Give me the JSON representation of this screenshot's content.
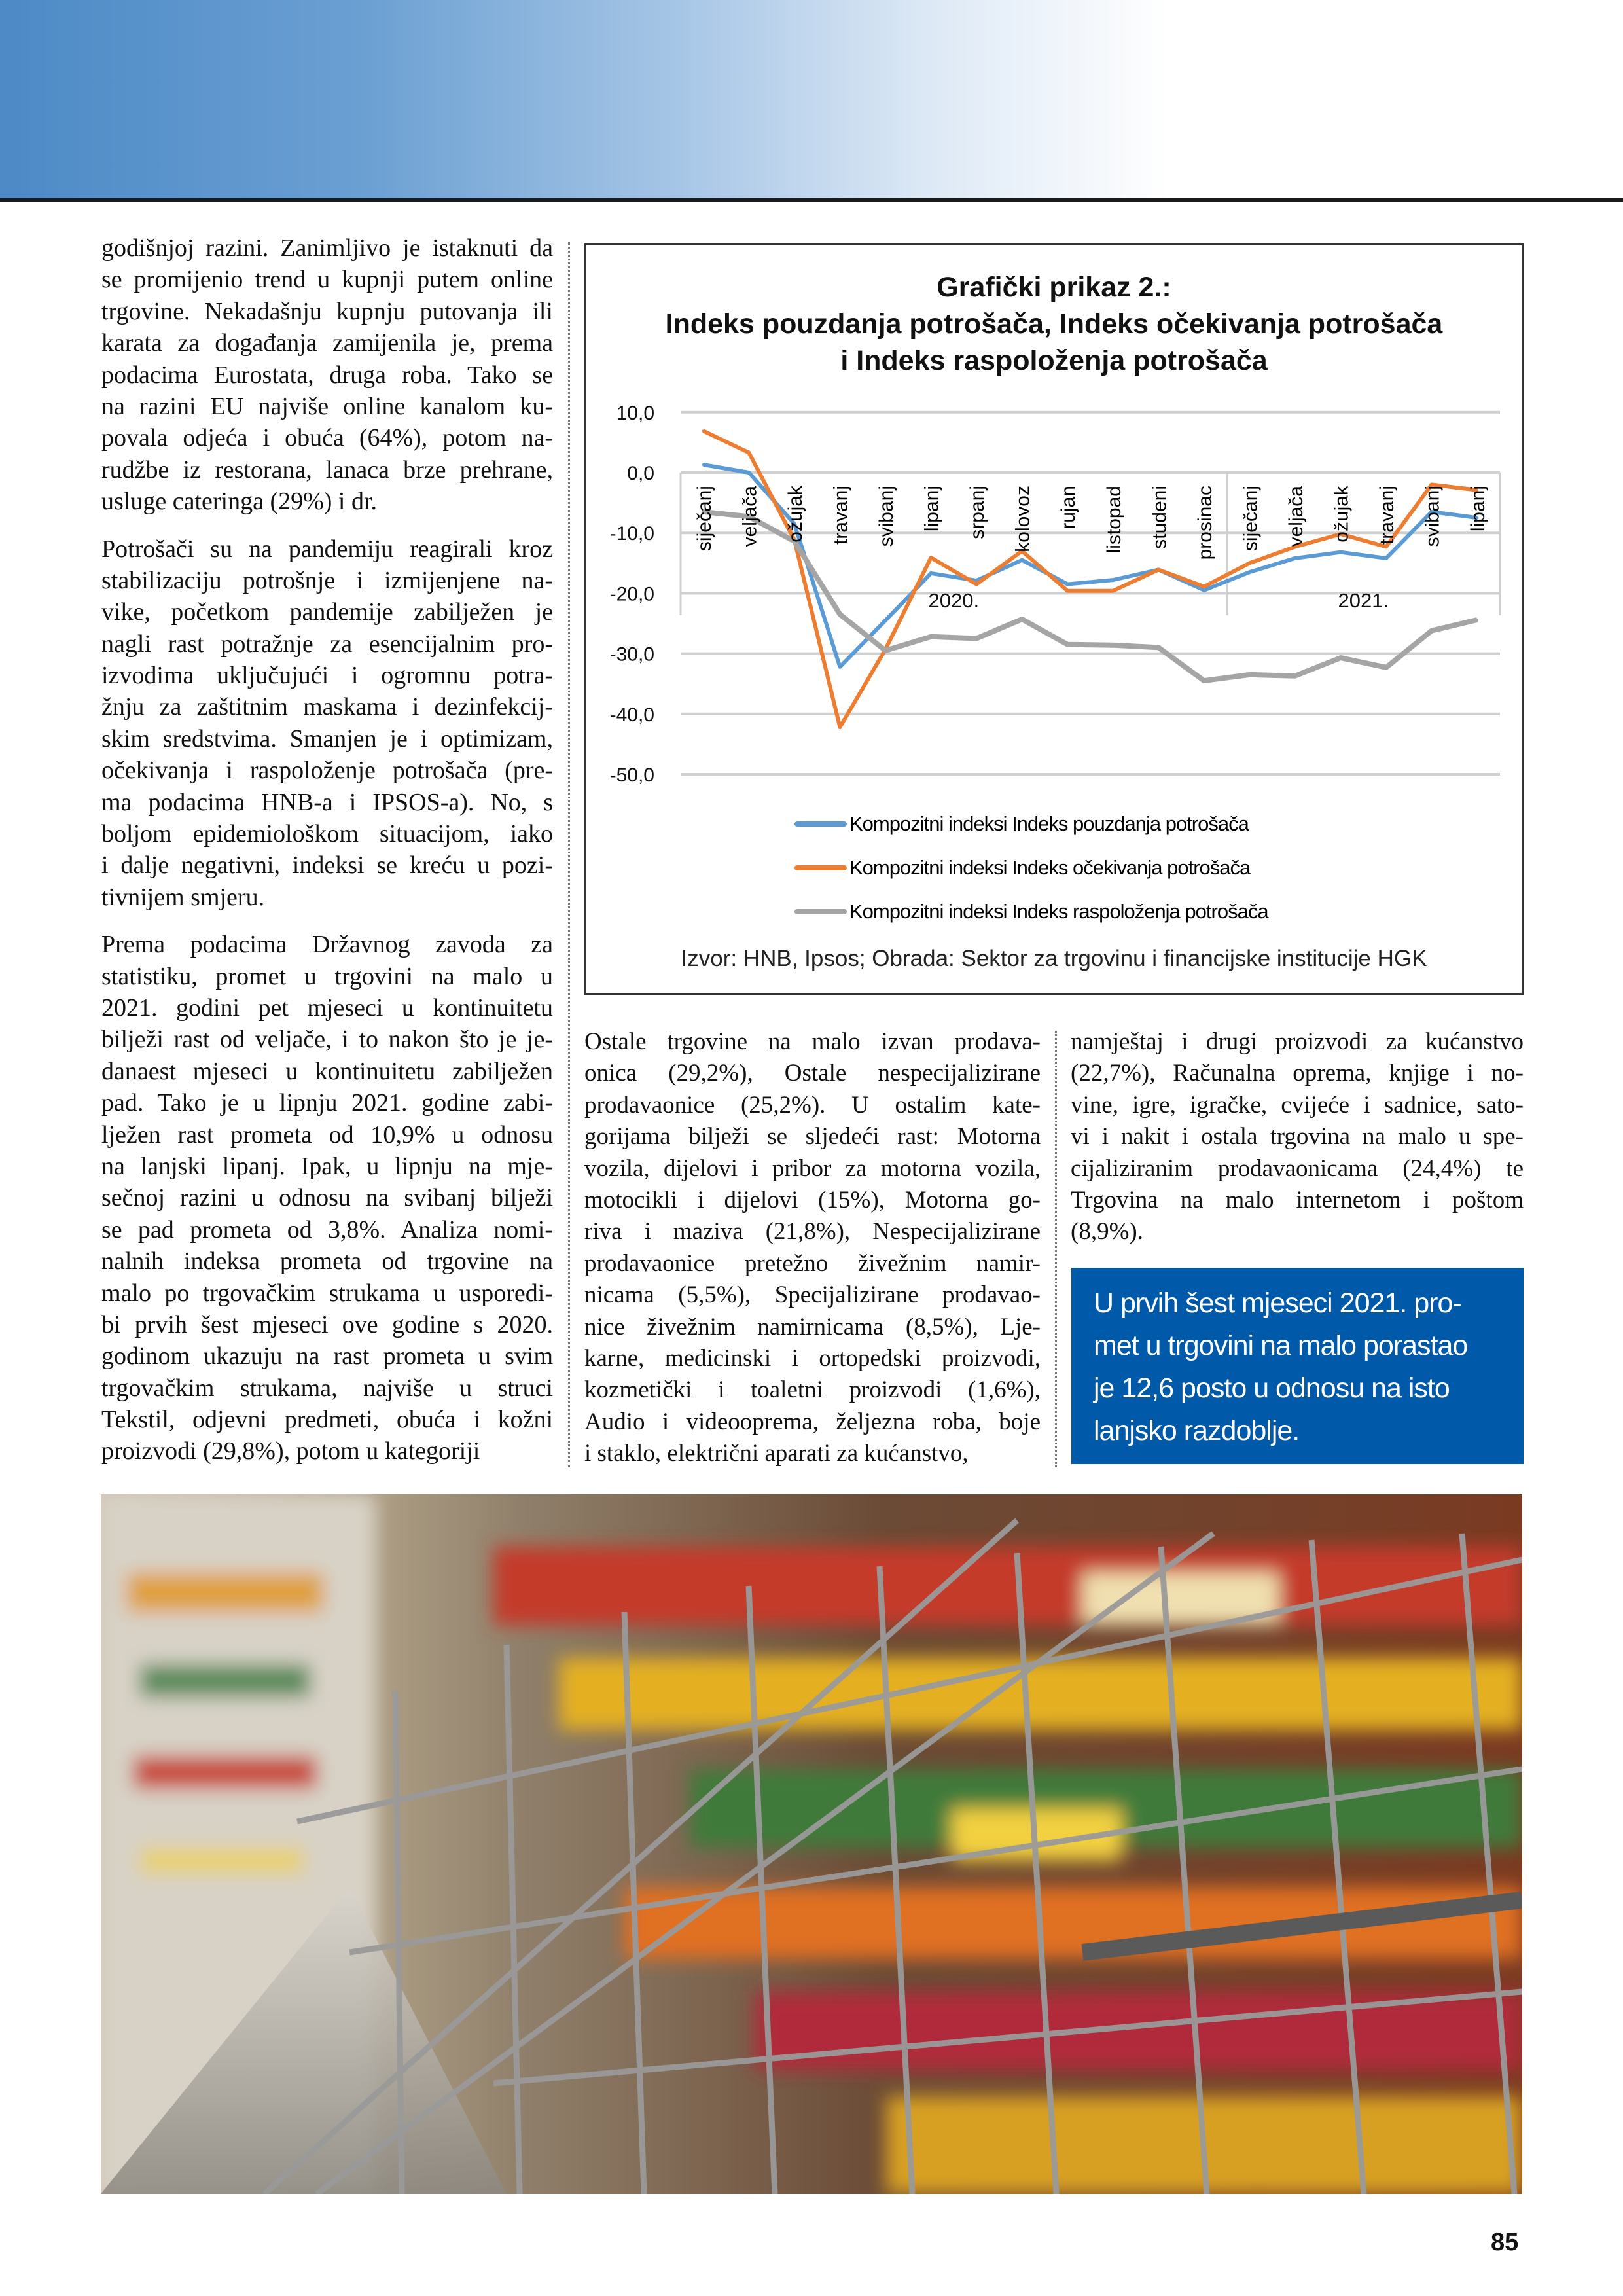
{
  "colors": {
    "accent_blue": "#005aa9",
    "series_blue": "#5b9bd5",
    "series_orange": "#ed7d31",
    "series_gray": "#a5a5a5"
  },
  "left_column": {
    "paragraphs": [
      [
        "godišnjoj razini. Zanimljivo je istaknuti da",
        "se promijenio trend u kupnji putem online",
        "trgovine. Nekadašnju kupnju putovanja ili",
        "karata za događanja zamijenila je, prema",
        "podacima Eurostata, druga roba. Tako se",
        "na razini EU najviše online kanalom ku-",
        "povala odjeća i obuća (64%), potom na-",
        "rudžbe iz restorana, lanaca brze prehrane,",
        "usluge cateringa (29%) i dr."
      ],
      [
        "Potrošači su na pandemiju reagirali kroz",
        "stabilizaciju potrošnje i izmijenjene na-",
        "vike, početkom pandemije zabilježen je",
        "nagli rast potražnje za esencijalnim pro-",
        "izvodima uključujući i ogromnu potra-",
        "žnju za zaštitnim maskama i dezinfekcij-",
        "skim sredstvima. Smanjen je i optimizam,",
        "očekivanja i raspoloženje potrošača (pre-",
        "ma podacima HNB-a i IPSOS-a). No, s",
        "boljom epidemiološkom situacijom, iako",
        "i dalje negativni, indeksi se kreću u pozi-",
        "tivnijem smjeru."
      ],
      [
        "Prema podacima Državnog zavoda za",
        "statistiku, promet u trgovini na malo u",
        "2021. godini pet mjeseci u kontinuitetu",
        "bilježi rast od veljače, i to nakon što je je-",
        "danaest mjeseci u kontinuitetu zabilježen",
        "pad. Tako je u lipnju 2021. godine zabi-",
        "lježen rast prometa od 10,9% u odnosu",
        "na lanjski lipanj. Ipak, u lipnju na mje-",
        "sečnoj razini u odnosu na svibanj bilježi",
        "se pad prometa od 3,8%. Analiza nomi-",
        "nalnih indeksa prometa od trgovine na",
        "malo po trgovačkim strukama u usporedi-",
        "bi prvih šest mjeseci ove godine s 2020.",
        "godinom ukazuju na rast prometa u svim",
        "trgovačkim strukama, najviše u struci",
        "Tekstil, odjevni predmeti, obuća i kožni",
        "proizvodi (29,8%), potom u kategoriji"
      ]
    ]
  },
  "middle_column": {
    "paragraphs": [
      [
        "Ostale trgovine na malo izvan prodava-",
        "onica (29,2%), Ostale nespecijalizirane",
        "prodavaonice (25,2%). U ostalim kate-",
        "gorijama bilježi se sljedeći rast: Motorna",
        "vozila, dijelovi i pribor za motorna vozila,",
        "motocikli i dijelovi (15%), Motorna go-",
        "riva i maziva (21,8%), Nespecijalizirane",
        "prodavaonice pretežno živežnim namir-",
        "nicama (5,5%), Specijalizirane prodavao-",
        "nice živežnim namirnicama (8,5%), Lje-",
        "karne, medicinski i ortopedski proizvodi,",
        "kozmetički i toaletni proizvodi (1,6%),",
        "Audio i videooprema, željezna roba, boje",
        "i staklo, električni aparati za kućanstvo,"
      ]
    ]
  },
  "right_column": {
    "paragraphs": [
      [
        "namještaj i drugi proizvodi za kućanstvo",
        "(22,7%), Računalna oprema, knjige i no-",
        "vine, igre, igračke, cvijeće i sadnice, sato-",
        "vi i nakit i ostala trgovina na malo u spe-",
        "cijaliziranim prodavaonicama (24,4%) te",
        "Trgovina na malo internetom i poštom",
        "(8,9%)."
      ]
    ]
  },
  "callout": {
    "lines": [
      "U prvih šest mjeseci 2021. pro-",
      "met u trgovini na malo porastao",
      "je 12,6 posto u odnosu na isto",
      "lanjsko razdoblje."
    ]
  },
  "chart_data": {
    "type": "line",
    "title": [
      "Grafički prikaz 2.:",
      "Indeks pouzdanja potrošača, Indeks očekivanja potrošača",
      "i Indeks raspoloženja potrošača"
    ],
    "categories": [
      "siječanj",
      "veljača",
      "ožujak",
      "travanj",
      "svibanj",
      "lipanj",
      "srpanj",
      "kolovoz",
      "rujan",
      "listopad",
      "studeni",
      "prosinac",
      "siječanj",
      "veljača",
      "ožujak",
      "travanj",
      "svibanj",
      "lipanj"
    ],
    "year_groups": [
      {
        "label": "2020.",
        "count": 12
      },
      {
        "label": "2021.",
        "count": 6
      }
    ],
    "ylim": [
      -50,
      10
    ],
    "yticks": [
      "10,0",
      "0,0",
      "-10,0",
      "-20,0",
      "-30,0",
      "-40,0",
      "-50,0"
    ],
    "ytick_values": [
      10,
      0,
      -10,
      -20,
      -30,
      -40,
      -50
    ],
    "grid": true,
    "legend_position": "bottom",
    "series": [
      {
        "name": "Kompozitni indeksi Indeks pouzdanja potrošača",
        "color": "#5b9bd5",
        "values": [
          1.3,
          0.0,
          -8.5,
          -32.2,
          -24.5,
          -16.7,
          -17.9,
          -14.5,
          -18.5,
          -17.8,
          -16.1,
          -19.5,
          -16.5,
          -14.2,
          -13.2,
          -14.2,
          -6.5,
          -7.5
        ]
      },
      {
        "name": "Kompozitni indeksi Indeks očekivanja potrošača",
        "color": "#ed7d31",
        "values": [
          6.9,
          3.3,
          -11.2,
          -42.2,
          -29.3,
          -14.1,
          -18.5,
          -13.0,
          -19.6,
          -19.6,
          -16.1,
          -18.9,
          -15.0,
          -12.3,
          -10.2,
          -12.3,
          -2.0,
          -2.9
        ]
      },
      {
        "name": "Kompozitni indeksi Indeks raspoloženja potrošača",
        "color": "#a5a5a5",
        "values": [
          -6.5,
          -7.3,
          -11.4,
          -23.5,
          -29.5,
          -27.2,
          -27.5,
          -24.3,
          -28.5,
          -28.6,
          -29.0,
          -34.5,
          -33.5,
          -33.7,
          -30.7,
          -32.3,
          -26.2,
          -24.4
        ]
      }
    ],
    "source": "Izvor: HNB, Ipsos; Obrada: Sektor za trgovinu i financijske institucije HGK"
  },
  "page_number": "85"
}
